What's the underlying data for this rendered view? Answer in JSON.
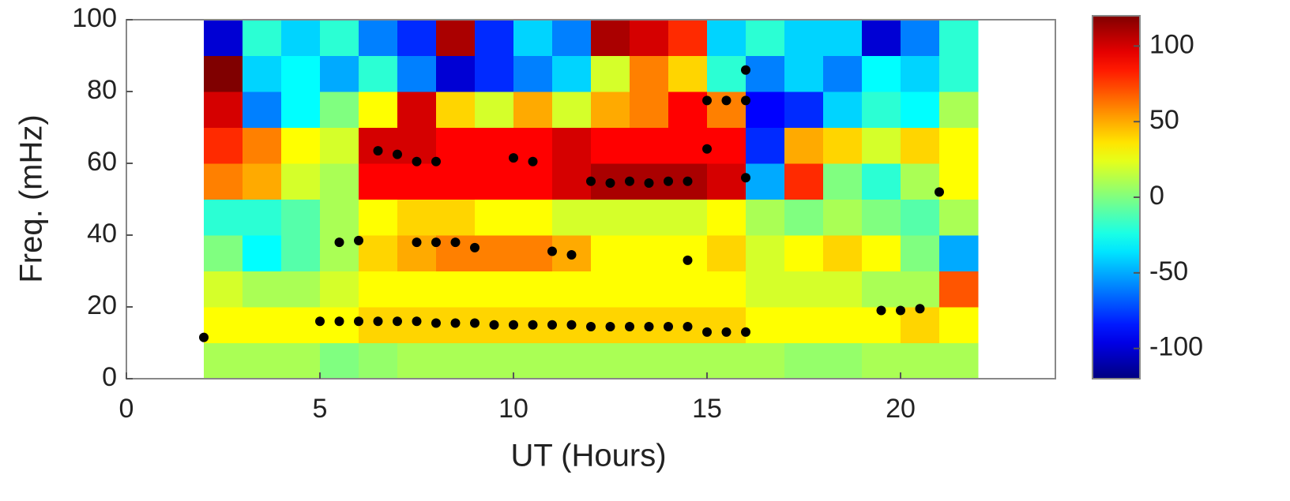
{
  "chart_data": {
    "type": "heatmap",
    "xlabel": "UT (Hours)",
    "ylabel": "Freq. (mHz)",
    "xlim": [
      0,
      24
    ],
    "xticks": [
      0,
      5,
      10,
      15,
      20
    ],
    "ylim": [
      0,
      100
    ],
    "yticks": [
      0,
      20,
      40,
      60,
      80,
      100
    ],
    "x_edges": [
      2,
      3,
      4,
      5,
      6,
      7,
      8,
      9,
      10,
      11,
      12,
      13,
      14,
      15,
      16,
      17,
      18,
      19,
      20,
      21,
      22
    ],
    "y_edges": [
      0,
      10,
      20,
      30,
      40,
      50,
      60,
      70,
      80,
      90,
      100
    ],
    "z": [
      [
        10,
        10,
        10,
        0,
        5,
        10,
        10,
        10,
        10,
        10,
        10,
        10,
        10,
        10,
        10,
        5,
        5,
        10,
        10,
        10
      ],
      [
        30,
        30,
        30,
        30,
        40,
        40,
        40,
        40,
        40,
        40,
        40,
        40,
        40,
        40,
        30,
        30,
        30,
        30,
        40,
        30
      ],
      [
        20,
        10,
        10,
        20,
        30,
        30,
        30,
        30,
        30,
        30,
        30,
        30,
        30,
        30,
        20,
        20,
        20,
        10,
        10,
        70
      ],
      [
        0,
        -30,
        -10,
        10,
        40,
        50,
        60,
        60,
        60,
        50,
        30,
        30,
        30,
        40,
        20,
        30,
        40,
        30,
        0,
        -50
      ],
      [
        -20,
        -20,
        -10,
        10,
        30,
        40,
        40,
        30,
        30,
        20,
        20,
        20,
        20,
        30,
        10,
        0,
        10,
        0,
        -10,
        10
      ],
      [
        60,
        50,
        20,
        10,
        90,
        90,
        90,
        90,
        90,
        100,
        110,
        110,
        110,
        100,
        -50,
        80,
        0,
        -20,
        10,
        30
      ],
      [
        80,
        60,
        30,
        20,
        100,
        100,
        90,
        90,
        90,
        100,
        90,
        90,
        90,
        90,
        -80,
        50,
        40,
        20,
        40,
        30
      ],
      [
        100,
        -60,
        -30,
        0,
        30,
        100,
        40,
        20,
        50,
        20,
        50,
        60,
        90,
        60,
        -90,
        -80,
        -40,
        -20,
        -30,
        10
      ],
      [
        120,
        -40,
        -30,
        -50,
        -20,
        -60,
        -100,
        -80,
        -60,
        -40,
        20,
        60,
        40,
        -20,
        -60,
        -40,
        -60,
        -30,
        -40,
        -20
      ],
      [
        -100,
        -20,
        -40,
        -20,
        -60,
        -80,
        110,
        -80,
        -40,
        -60,
        110,
        100,
        80,
        -40,
        -20,
        -40,
        -40,
        -100,
        -60,
        -20
      ]
    ],
    "colormap": "jet",
    "clim": [
      -120,
      120
    ],
    "cticks": [
      -100,
      -50,
      0,
      50,
      100
    ],
    "points": {
      "color": "#000000",
      "x": [
        2,
        5,
        5.5,
        6,
        6.5,
        7,
        7.5,
        8,
        8.5,
        9,
        9.5,
        10,
        10.5,
        11,
        11.5,
        12,
        12.5,
        13,
        13.5,
        14,
        14.5,
        15,
        15.5,
        16,
        19.5,
        20,
        20.5,
        5.5,
        6,
        7.5,
        8,
        8.5,
        9,
        11,
        11.5,
        14.5,
        6.5,
        7,
        7.5,
        8,
        10,
        10.5,
        12,
        12.5,
        13,
        13.5,
        14,
        14.5,
        15,
        16,
        21,
        15,
        15.5,
        16,
        16
      ],
      "y": [
        11.5,
        16,
        16,
        16,
        16,
        16,
        16,
        15.5,
        15.5,
        15.5,
        15,
        15,
        15,
        15,
        15,
        14.5,
        14.5,
        14.5,
        14.5,
        14.5,
        14.5,
        13,
        13,
        13,
        19,
        19,
        19.5,
        38,
        38.5,
        38,
        38,
        38,
        36.5,
        35.5,
        34.5,
        33,
        63.5,
        62.5,
        60.5,
        60.5,
        61.5,
        60.5,
        55,
        54.5,
        55,
        54.5,
        55,
        55,
        64,
        56,
        52,
        77.5,
        77.5,
        77.5,
        86
      ]
    }
  }
}
